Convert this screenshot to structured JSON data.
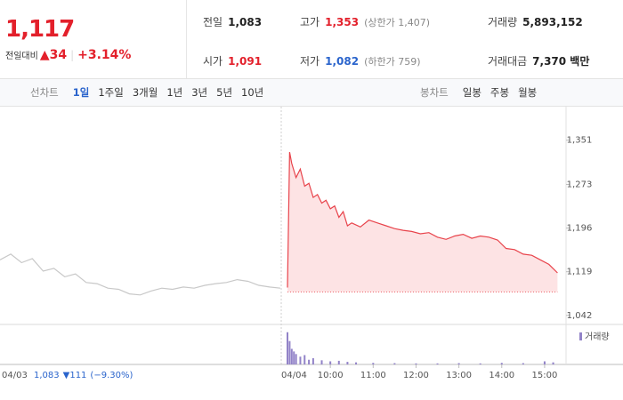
{
  "quote": {
    "price": "1,117",
    "change_label": "전일대비",
    "change": "▲34",
    "rate": "+3.14%",
    "color": "#e3202b"
  },
  "info": [
    [
      {
        "label": "전일",
        "value": "1,083",
        "color": "#222222"
      },
      {
        "label": "고가",
        "value": "1,353",
        "note": "(상한가 1,407)",
        "color": "#e3202b"
      },
      {
        "label": "거래량",
        "value": "5,893,152",
        "color": "#222222"
      }
    ],
    [
      {
        "label": "시가",
        "value": "1,091",
        "color": "#e3202b"
      },
      {
        "label": "저가",
        "value": "1,082",
        "note": "(하한가 759)",
        "color": "#2a64cc"
      },
      {
        "label": "거래대금",
        "value": "7,370 백만",
        "color": "#222222"
      }
    ]
  ],
  "tabs": {
    "line_label": "선차트",
    "line_periods": [
      "1일",
      "1주일",
      "3개월",
      "1년",
      "3년",
      "5년",
      "10년"
    ],
    "selected_period": 0,
    "candle_label": "봉차트",
    "candle_periods": [
      "일봉",
      "주봉",
      "월봉"
    ]
  },
  "chart_data": [
    {
      "type": "line",
      "label": "04/03",
      "color": "#c8c8c8",
      "x": [
        9,
        9.25,
        9.5,
        9.75,
        10,
        10.25,
        10.5,
        10.75,
        11,
        11.25,
        11.5,
        11.75,
        12,
        12.25,
        12.5,
        12.75,
        13,
        13.25,
        13.5,
        13.75,
        14,
        14.25,
        14.5,
        14.75,
        15,
        15.25,
        15.5
      ],
      "values": [
        1140,
        1150,
        1135,
        1142,
        1120,
        1125,
        1110,
        1115,
        1100,
        1098,
        1090,
        1088,
        1080,
        1078,
        1085,
        1090,
        1088,
        1092,
        1090,
        1095,
        1098,
        1100,
        1105,
        1102,
        1095,
        1092,
        1090
      ],
      "xlim": [
        9,
        15.5
      ],
      "ylim": [
        1026,
        1407
      ],
      "summary": {
        "close": "1,083",
        "change": "▼111",
        "rate": "(−9.30%)",
        "color": "#2a64cc"
      }
    },
    {
      "type": "area",
      "label": "04/04",
      "color": "#e8434b",
      "fill": "#fde3e4",
      "x": [
        9,
        9.05,
        9.1,
        9.2,
        9.3,
        9.4,
        9.5,
        9.6,
        9.7,
        9.8,
        9.9,
        10,
        10.1,
        10.2,
        10.3,
        10.4,
        10.5,
        10.7,
        10.9,
        11.1,
        11.3,
        11.5,
        11.7,
        11.9,
        12.1,
        12.3,
        12.5,
        12.7,
        12.9,
        13.1,
        13.3,
        13.5,
        13.7,
        13.9,
        14.1,
        14.3,
        14.5,
        14.7,
        14.9,
        15.1,
        15.3
      ],
      "values": [
        1091,
        1330,
        1310,
        1285,
        1300,
        1270,
        1275,
        1250,
        1255,
        1240,
        1245,
        1230,
        1235,
        1215,
        1225,
        1200,
        1205,
        1198,
        1210,
        1205,
        1200,
        1195,
        1192,
        1190,
        1186,
        1188,
        1180,
        1176,
        1182,
        1185,
        1178,
        1182,
        1180,
        1175,
        1160,
        1158,
        1150,
        1148,
        1140,
        1132,
        1117
      ],
      "baseline": 1083,
      "xlim": [
        9,
        15.5
      ],
      "ylim": [
        1026,
        1407
      ],
      "xticks": [
        {
          "value": 10,
          "label": "10:00"
        },
        {
          "value": 11,
          "label": "11:00"
        },
        {
          "value": 12,
          "label": "12:00"
        },
        {
          "value": 13,
          "label": "13:00"
        },
        {
          "value": 14,
          "label": "14:00"
        },
        {
          "value": 15,
          "label": "15:00"
        }
      ],
      "yticks": [
        {
          "value": 1351,
          "label": "1,351"
        },
        {
          "value": 1273,
          "label": "1,273"
        },
        {
          "value": 1196,
          "label": "1,196"
        },
        {
          "value": 1119,
          "label": "1,119"
        },
        {
          "value": 1042,
          "label": "1,042"
        }
      ]
    },
    {
      "type": "bar",
      "title": "거래량",
      "color": "#9283c8",
      "x": [
        9,
        9.05,
        9.1,
        9.15,
        9.2,
        9.3,
        9.4,
        9.5,
        9.6,
        9.8,
        10,
        10.2,
        10.4,
        10.6,
        11,
        11.5,
        12,
        12.5,
        13,
        13.5,
        14,
        14.5,
        15,
        15.2
      ],
      "values": [
        620000,
        450000,
        300000,
        250000,
        200000,
        150000,
        180000,
        90000,
        120000,
        80000,
        60000,
        70000,
        50000,
        40000,
        30000,
        25000,
        20000,
        20000,
        25000,
        20000,
        30000,
        25000,
        60000,
        40000
      ],
      "xlim": [
        9,
        15.5
      ],
      "ylim": [
        0,
        650000
      ]
    }
  ]
}
